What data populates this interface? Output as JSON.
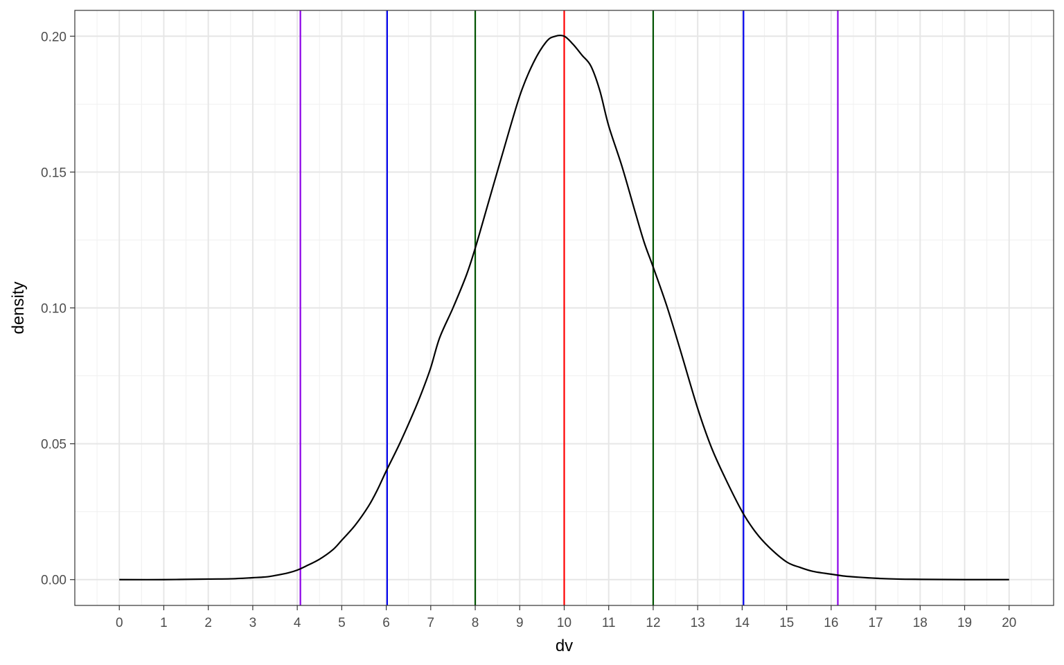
{
  "chart_data": {
    "type": "line",
    "title": "",
    "xlabel": "dv",
    "ylabel": "density",
    "xlim": [
      -1,
      21
    ],
    "ylim": [
      -0.0095,
      0.2095
    ],
    "x_ticks": [
      0,
      1,
      2,
      3,
      4,
      5,
      6,
      7,
      8,
      9,
      10,
      11,
      12,
      13,
      14,
      15,
      16,
      17,
      18,
      19,
      20
    ],
    "y_ticks": [
      0.0,
      0.05,
      0.1,
      0.15,
      0.2
    ],
    "y_tick_labels": [
      "0.00",
      "0.05",
      "0.10",
      "0.15",
      "0.20"
    ],
    "grid": true,
    "legend": "none",
    "series": [
      {
        "color": "#000000",
        "x": [
          0,
          1,
          2,
          2.5,
          3,
          3.3,
          3.5,
          3.8,
          4,
          4.2,
          4.5,
          4.8,
          5,
          5.3,
          5.6,
          5.8,
          6,
          6.3,
          6.6,
          6.8,
          7,
          7.2,
          7.5,
          7.8,
          8,
          8.3,
          8.6,
          9,
          9.3,
          9.6,
          9.8,
          10,
          10.2,
          10.4,
          10.6,
          10.8,
          11,
          11.3,
          11.6,
          11.8,
          12,
          12.3,
          12.6,
          13,
          13.3,
          13.6,
          14,
          14.3,
          14.6,
          15,
          15.3,
          15.6,
          16,
          16.3,
          16.6,
          17,
          17.5,
          18,
          19,
          20
        ],
        "y": [
          0.0,
          0.0,
          0.0002,
          0.0003,
          0.0007,
          0.001,
          0.0015,
          0.0025,
          0.0035,
          0.005,
          0.0075,
          0.011,
          0.0145,
          0.02,
          0.027,
          0.033,
          0.04,
          0.05,
          0.061,
          0.069,
          0.078,
          0.089,
          0.1,
          0.112,
          0.122,
          0.139,
          0.156,
          0.178,
          0.19,
          0.198,
          0.2,
          0.2,
          0.197,
          0.193,
          0.189,
          0.18,
          0.167,
          0.152,
          0.135,
          0.124,
          0.115,
          0.101,
          0.085,
          0.063,
          0.049,
          0.038,
          0.025,
          0.0175,
          0.012,
          0.0065,
          0.0045,
          0.003,
          0.002,
          0.0013,
          0.0009,
          0.0005,
          0.0002,
          0.0001,
          0.0,
          0.0
        ]
      }
    ],
    "vlines": [
      {
        "x": 4.07,
        "color": "#8b00e8"
      },
      {
        "x": 6.02,
        "color": "#0000ee"
      },
      {
        "x": 8.0,
        "color": "#005200"
      },
      {
        "x": 10.0,
        "color": "#ff0000"
      },
      {
        "x": 12.0,
        "color": "#005200"
      },
      {
        "x": 14.03,
        "color": "#0000ee"
      },
      {
        "x": 16.15,
        "color": "#8b00e8"
      }
    ]
  }
}
